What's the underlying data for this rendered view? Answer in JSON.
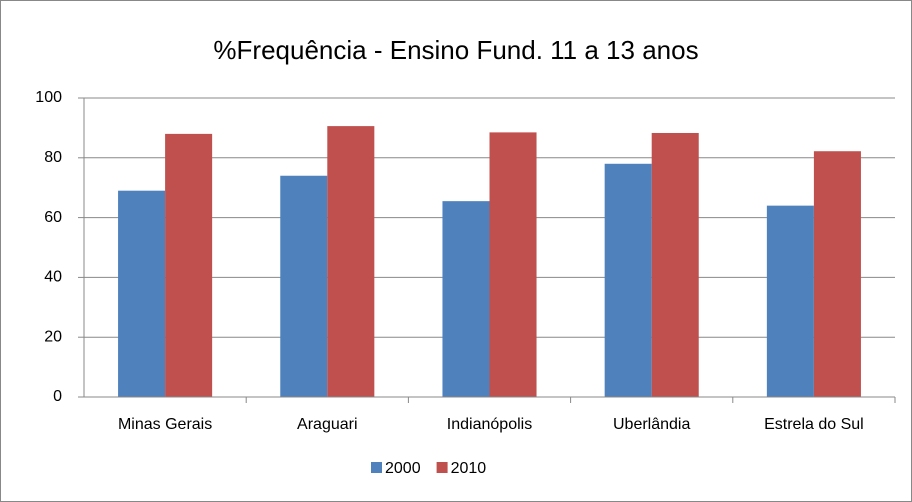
{
  "chart_data": {
    "type": "bar",
    "title": "%Frequência - Ensino Fund. 11 a 13 anos",
    "categories": [
      "Minas Gerais",
      "Araguari",
      "Indianópolis",
      "Uberlândia",
      "Estrela do Sul"
    ],
    "series": [
      {
        "name": "2000",
        "color": "#4f81bd",
        "values": [
          69,
          74,
          65.5,
          78,
          64
        ]
      },
      {
        "name": "2010",
        "color": "#c0504d",
        "values": [
          88,
          90.6,
          88.5,
          88.3,
          82.2
        ]
      }
    ],
    "ylim": [
      0,
      100
    ],
    "yticks": [
      0,
      20,
      40,
      60,
      80,
      100
    ],
    "grid": true,
    "legend": "bottom"
  }
}
